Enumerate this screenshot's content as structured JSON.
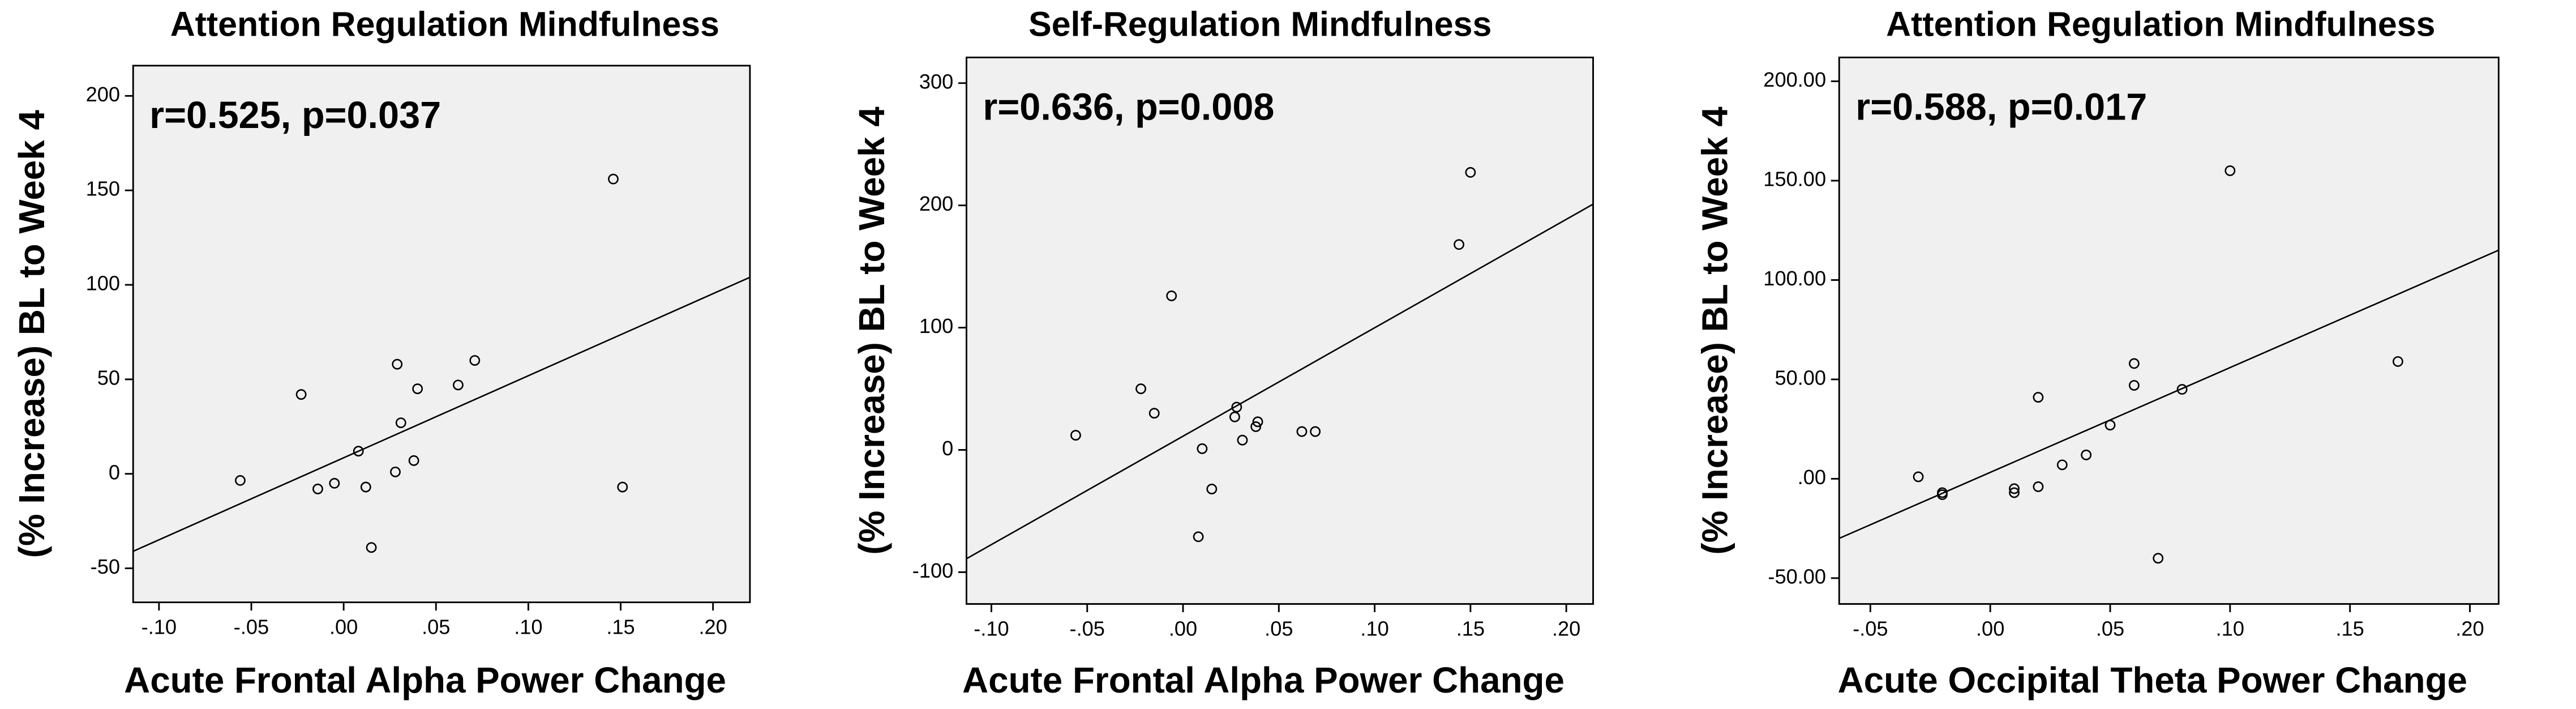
{
  "chart_data": [
    {
      "type": "scatter",
      "title": "Attention Regulation Mindfulness",
      "annotation": "r=0.525, p=0.037",
      "x_label": "Acute Frontal Alpha Power Change",
      "y_label": "(% Increase) BL to Week 4",
      "x": [
        -0.056,
        -0.023,
        -0.014,
        -0.005,
        0.008,
        0.012,
        0.015,
        0.029,
        0.031,
        0.028,
        0.038,
        0.04,
        0.062,
        0.071,
        0.146,
        0.151
      ],
      "values": [
        -3.5,
        42,
        -8,
        -5,
        12,
        -7,
        -39,
        58,
        27,
        1,
        7,
        45,
        47,
        60,
        156,
        -7
      ],
      "fit_line": {
        "x": [
          -0.114,
          0.22
        ],
        "values": [
          -41,
          104
        ]
      },
      "xlim": [
        -0.114,
        0.22
      ],
      "ylim": [
        -68,
        216
      ],
      "xticks": [
        {
          "value": -0.1,
          "label": "-.10"
        },
        {
          "value": -0.05,
          "label": "-.05"
        },
        {
          "value": 0,
          "label": ".00"
        },
        {
          "value": 0.05,
          "label": ".05"
        },
        {
          "value": 0.1,
          "label": ".10"
        },
        {
          "value": 0.15,
          "label": ".15"
        },
        {
          "value": 0.2,
          "label": ".20"
        }
      ],
      "yticks": [
        -50,
        0,
        50,
        100,
        150,
        200
      ],
      "color": "#000000",
      "background": "#f0f0f0"
    },
    {
      "type": "scatter",
      "title": "Self-Regulation Mindfulness",
      "annotation": "r=0.636, p=0.008",
      "x_label": "Acute Frontal Alpha Power Change",
      "y_label": "(% Increase) BL to Week 4",
      "x": [
        -0.056,
        -0.022,
        -0.015,
        -0.006,
        0.01,
        0.008,
        0.015,
        0.027,
        0.028,
        0.031,
        0.038,
        0.039,
        0.062,
        0.069,
        0.144,
        0.15
      ],
      "values": [
        12,
        50,
        30,
        126,
        1,
        -71,
        -32,
        27,
        35,
        8,
        19,
        23,
        15,
        15,
        168,
        227
      ],
      "fit_line": {
        "x": [
          -0.113,
          0.214
        ],
        "values": [
          -89,
          201
        ]
      },
      "xlim": [
        -0.113,
        0.214
      ],
      "ylim": [
        -126,
        321
      ],
      "xticks": [
        {
          "value": -0.1,
          "label": "-.10"
        },
        {
          "value": -0.05,
          "label": "-.05"
        },
        {
          "value": 0,
          "label": ".00"
        },
        {
          "value": 0.05,
          "label": ".05"
        },
        {
          "value": 0.1,
          "label": ".10"
        },
        {
          "value": 0.15,
          "label": ".15"
        },
        {
          "value": 0.2,
          "label": ".20"
        }
      ],
      "yticks": [
        -100,
        0,
        100,
        200,
        300
      ],
      "color": "#000000",
      "background": "#f0f0f0"
    },
    {
      "type": "scatter",
      "title": "Attention Regulation Mindfulness",
      "annotation": "r=0.588, p=0.017",
      "x_label": "Acute Occipital Theta Power Change",
      "y_label": "(% Increase) BL to Week 4",
      "x": [
        -0.03,
        -0.02,
        -0.02,
        0.01,
        0.01,
        0.02,
        0.02,
        0.03,
        0.04,
        0.05,
        0.06,
        0.06,
        0.07,
        0.08,
        0.1,
        0.17
      ],
      "values": [
        1,
        -7,
        -8,
        -5,
        -7,
        41,
        -4,
        7,
        12,
        27,
        58,
        47,
        -40,
        45,
        155,
        59
      ],
      "fit_line": {
        "x": [
          -0.063,
          0.212
        ],
        "values": [
          -30,
          115
        ]
      },
      "xlim": [
        -0.063,
        0.212
      ],
      "ylim": [
        -63,
        212
      ],
      "xticks": [
        {
          "value": -0.05,
          "label": "-.05"
        },
        {
          "value": 0,
          "label": ".00"
        },
        {
          "value": 0.05,
          "label": ".05"
        },
        {
          "value": 0.1,
          "label": ".10"
        },
        {
          "value": 0.15,
          "label": ".15"
        },
        {
          "value": 0.2,
          "label": ".20"
        }
      ],
      "yticks": [
        {
          "value": -50,
          "label": "-50.00"
        },
        {
          "value": 0,
          "label": ".00"
        },
        {
          "value": 50,
          "label": "50.00"
        },
        {
          "value": 100,
          "label": "100.00"
        },
        {
          "value": 150,
          "label": "150.00"
        },
        {
          "value": 200,
          "label": "200.00"
        }
      ],
      "color": "#000000",
      "background": "#f0f0f0"
    }
  ]
}
